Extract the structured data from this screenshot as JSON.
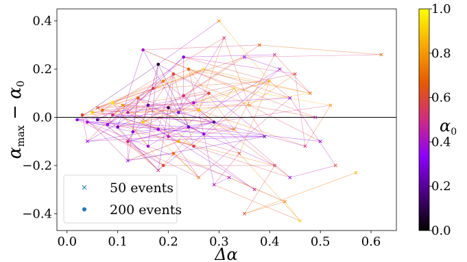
{
  "chart_data": {
    "type": "scatter",
    "xlabel": "Δα",
    "ylabel": "α_max − α_0",
    "ylabel_main": "α",
    "ylabel_sub1": "max",
    "ylabel_mid": " − α",
    "ylabel_sub2": "0",
    "xlim": [
      -0.02,
      0.65
    ],
    "ylim": [
      -0.47,
      0.45
    ],
    "x_ticks": [
      0.0,
      0.1,
      0.2,
      0.3,
      0.4,
      0.5,
      0.6
    ],
    "x_tick_labels": [
      "0.0",
      "0.1",
      "0.2",
      "0.3",
      "0.4",
      "0.5",
      "0.6"
    ],
    "y_ticks": [
      0.4,
      0.2,
      0.0,
      -0.2,
      -0.4
    ],
    "y_tick_labels": [
      "0.4",
      "0.2",
      "0.0",
      "−0.2",
      "−0.4"
    ],
    "reference_line_y": 0.0,
    "grid": false,
    "legend": {
      "placement": "bottom-left",
      "entries": [
        {
          "label": "50 events",
          "marker": "x",
          "color": "#1f77b4"
        },
        {
          "label": "200 events",
          "marker": "dot",
          "color": "#1f77b4"
        }
      ]
    },
    "colorbar": {
      "label_main": "α",
      "label_sub": "0",
      "colormap": "gnuplot",
      "range": [
        0.0,
        1.0
      ],
      "ticks": [
        1.0,
        0.8,
        0.6,
        0.4,
        0.2,
        0.0
      ],
      "tick_labels": [
        "1.0",
        "0.8",
        "0.6",
        "0.4",
        "0.2",
        "0.0"
      ],
      "stops": [
        "#000000",
        "#4a007f",
        "#8c00ff",
        "#cf2b82",
        "#e55a00",
        "#f9a800",
        "#ffff00"
      ]
    },
    "series": [
      {
        "name": "200 events",
        "marker": "dot",
        "points": [
          {
            "x": 0.02,
            "y": -0.01,
            "c": 0.3
          },
          {
            "x": 0.03,
            "y": 0.01,
            "c": 0.6
          },
          {
            "x": 0.04,
            "y": -0.02,
            "c": 0.4
          },
          {
            "x": 0.05,
            "y": 0.02,
            "c": 0.9
          },
          {
            "x": 0.06,
            "y": -0.01,
            "c": 0.2
          },
          {
            "x": 0.07,
            "y": 0.03,
            "c": 0.7
          },
          {
            "x": 0.08,
            "y": -0.03,
            "c": 0.35
          },
          {
            "x": 0.09,
            "y": 0.01,
            "c": 0.5
          },
          {
            "x": 0.1,
            "y": -0.04,
            "c": 0.25
          },
          {
            "x": 0.11,
            "y": 0.05,
            "c": 0.8
          },
          {
            "x": 0.12,
            "y": 0.02,
            "c": 0.45
          },
          {
            "x": 0.13,
            "y": -0.06,
            "c": 0.3
          },
          {
            "x": 0.14,
            "y": 0.08,
            "c": 0.65
          },
          {
            "x": 0.15,
            "y": 0.28,
            "c": 0.4
          },
          {
            "x": 0.15,
            "y": -0.02,
            "c": 0.9
          },
          {
            "x": 0.16,
            "y": 0.05,
            "c": 0.2
          },
          {
            "x": 0.17,
            "y": 0.12,
            "c": 0.55
          },
          {
            "x": 0.18,
            "y": -0.05,
            "c": 0.35
          },
          {
            "x": 0.19,
            "y": 0.15,
            "c": 0.75
          },
          {
            "x": 0.2,
            "y": 0.04,
            "c": 0.1
          },
          {
            "x": 0.2,
            "y": -0.08,
            "c": 0.45
          },
          {
            "x": 0.21,
            "y": 0.18,
            "c": 0.6
          },
          {
            "x": 0.22,
            "y": 0.02,
            "c": 0.3
          },
          {
            "x": 0.22,
            "y": -0.1,
            "c": 0.85
          },
          {
            "x": 0.23,
            "y": 0.09,
            "c": 0.5
          },
          {
            "x": 0.24,
            "y": -0.04,
            "c": 0.25
          },
          {
            "x": 0.24,
            "y": 0.2,
            "c": 0.7
          },
          {
            "x": 0.25,
            "y": 0.06,
            "c": 0.4
          },
          {
            "x": 0.25,
            "y": -0.12,
            "c": 0.55
          },
          {
            "x": 0.26,
            "y": 0.03,
            "c": 0.9
          },
          {
            "x": 0.27,
            "y": -0.07,
            "c": 0.35
          },
          {
            "x": 0.28,
            "y": 0.1,
            "c": 0.6
          },
          {
            "x": 0.29,
            "y": -0.02,
            "c": 0.2
          },
          {
            "x": 0.18,
            "y": 0.22,
            "c": 0.05
          },
          {
            "x": 0.12,
            "y": -0.1,
            "c": 0.5
          },
          {
            "x": 0.09,
            "y": 0.06,
            "c": 0.95
          },
          {
            "x": 0.16,
            "y": -0.12,
            "c": 0.4
          },
          {
            "x": 0.21,
            "y": -0.15,
            "c": 0.7
          },
          {
            "x": 0.23,
            "y": 0.25,
            "c": 0.3
          },
          {
            "x": 0.19,
            "y": -0.2,
            "c": 0.6
          }
        ]
      },
      {
        "name": "50 events",
        "marker": "x",
        "points": [
          {
            "x": 0.04,
            "y": -0.1,
            "c": 0.4
          },
          {
            "x": 0.06,
            "y": 0.04,
            "c": 0.6
          },
          {
            "x": 0.12,
            "y": -0.18,
            "c": 0.35
          },
          {
            "x": 0.18,
            "y": -0.22,
            "c": 0.5
          },
          {
            "x": 0.26,
            "y": -0.25,
            "c": 0.7
          },
          {
            "x": 0.3,
            "y": 0.4,
            "c": 0.75
          },
          {
            "x": 0.31,
            "y": 0.33,
            "c": 0.5
          },
          {
            "x": 0.32,
            "y": -0.25,
            "c": 0.4
          },
          {
            "x": 0.33,
            "y": 0.12,
            "c": 0.9
          },
          {
            "x": 0.34,
            "y": -0.15,
            "c": 0.6
          },
          {
            "x": 0.35,
            "y": 0.25,
            "c": 0.3
          },
          {
            "x": 0.36,
            "y": 0.05,
            "c": 0.8
          },
          {
            "x": 0.37,
            "y": -0.3,
            "c": 0.45
          },
          {
            "x": 0.38,
            "y": 0.3,
            "c": 0.65
          },
          {
            "x": 0.39,
            "y": -0.08,
            "c": 0.2
          },
          {
            "x": 0.4,
            "y": 0.15,
            "c": 0.85
          },
          {
            "x": 0.41,
            "y": -0.2,
            "c": 0.55
          },
          {
            "x": 0.42,
            "y": 0.2,
            "c": 0.4
          },
          {
            "x": 0.43,
            "y": -0.35,
            "c": 0.75
          },
          {
            "x": 0.44,
            "y": 0.08,
            "c": 0.3
          },
          {
            "x": 0.45,
            "y": 0.18,
            "c": 0.6
          },
          {
            "x": 0.46,
            "y": -0.43,
            "c": 0.9
          },
          {
            "x": 0.47,
            "y": -0.12,
            "c": 0.5
          },
          {
            "x": 0.48,
            "y": 0.1,
            "c": 0.7
          },
          {
            "x": 0.5,
            "y": -0.1,
            "c": 0.35
          },
          {
            "x": 0.52,
            "y": 0.05,
            "c": 0.8
          },
          {
            "x": 0.53,
            "y": -0.2,
            "c": 0.6
          },
          {
            "x": 0.57,
            "y": -0.23,
            "c": 0.85
          },
          {
            "x": 0.62,
            "y": 0.26,
            "c": 0.7
          },
          {
            "x": 0.29,
            "y": -0.28,
            "c": 0.4
          },
          {
            "x": 0.35,
            "y": -0.4,
            "c": 0.6
          },
          {
            "x": 0.41,
            "y": 0.26,
            "c": 0.5
          },
          {
            "x": 0.27,
            "y": 0.2,
            "c": 0.9
          },
          {
            "x": 0.44,
            "y": -0.25,
            "c": 0.3
          },
          {
            "x": 0.33,
            "y": -0.05,
            "c": 0.75
          },
          {
            "x": 0.49,
            "y": 0.0,
            "c": 0.45
          }
        ]
      }
    ]
  }
}
